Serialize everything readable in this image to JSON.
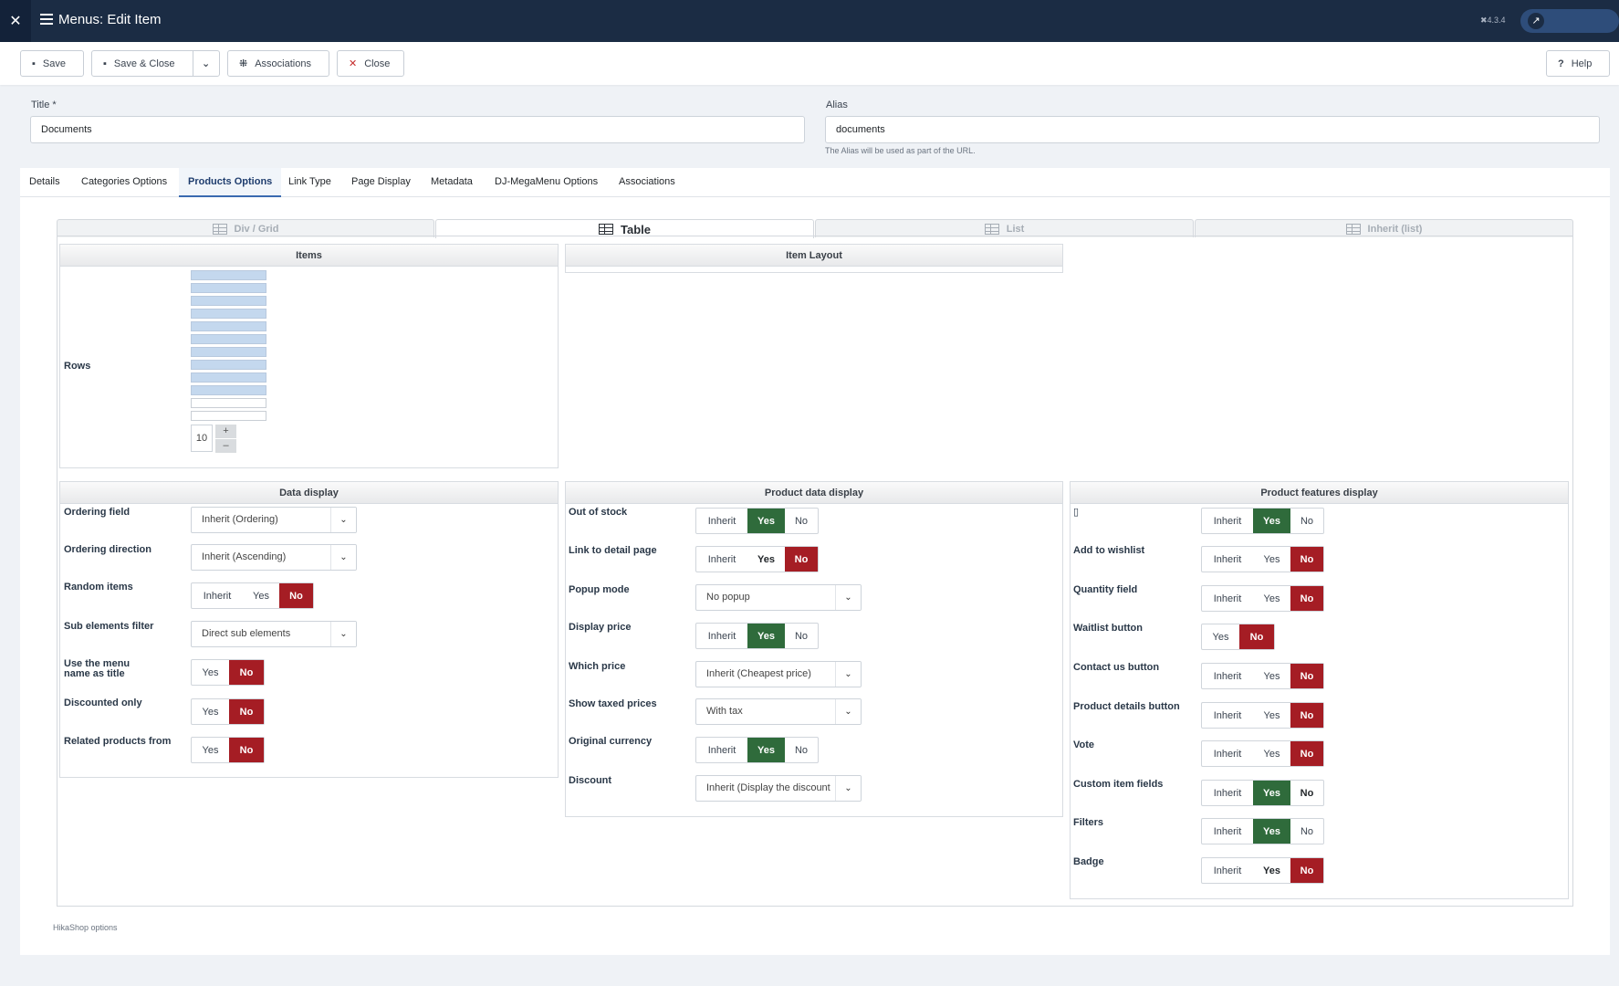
{
  "header": {
    "logo": "✕",
    "title": "Menus: Edit Item",
    "version": "✖4.3.4"
  },
  "toolbar": {
    "save": "Save",
    "save_close": "Save & Close",
    "associations": "Associations",
    "close": "Close",
    "help": "Help"
  },
  "form": {
    "title_label": "Title *",
    "title_value": "Documents",
    "alias_label": "Alias",
    "alias_value": "documents",
    "alias_note": "The Alias will be used as part of the URL."
  },
  "tabs": [
    "Details",
    "Categories Options",
    "Products Options",
    "Link Type",
    "Page Display",
    "Metadata",
    "DJ-MegaMenu Options",
    "Associations"
  ],
  "active_tab": "Products Options",
  "layout_tabs": [
    "Div / Grid",
    "Table",
    "List",
    "Inherit (list)"
  ],
  "active_layout": "Table",
  "items": {
    "title": "Items",
    "rows_label": "Rows",
    "rows_value": "10",
    "plus": "+",
    "minus": "–"
  },
  "item_layout": {
    "title": "Item Layout"
  },
  "data_display": {
    "title": "Data display",
    "ordering_field": {
      "label": "Ordering field",
      "value": "Inherit (Ordering)"
    },
    "ordering_direction": {
      "label": "Ordering direction",
      "value": "Inherit (Ascending)"
    },
    "random_items": {
      "label": "Random items",
      "options": [
        "Inherit",
        "Yes",
        "No"
      ],
      "selected": "No"
    },
    "sub_elements": {
      "label": "Sub elements filter",
      "value": "Direct sub elements"
    },
    "menu_name_title": {
      "label1": "Use the menu",
      "label2": "name as title",
      "options": [
        "Yes",
        "No"
      ],
      "selected": "No"
    },
    "discounted_only": {
      "label": "Discounted only",
      "options": [
        "Yes",
        "No"
      ],
      "selected": "No"
    },
    "related_products": {
      "label": "Related products from",
      "options": [
        "Yes",
        "No"
      ],
      "selected": "No"
    }
  },
  "product_data": {
    "title": "Product data display",
    "out_of_stock": {
      "label": "Out of stock",
      "options": [
        "Inherit",
        "Yes",
        "No"
      ],
      "selected": "Yes"
    },
    "link_detail": {
      "label": "Link to detail page",
      "options": [
        "Inherit",
        "Yes",
        "No"
      ],
      "selected": "No"
    },
    "popup_mode": {
      "label": "Popup mode",
      "value": "No popup"
    },
    "display_price": {
      "label": "Display price",
      "options": [
        "Inherit",
        "Yes",
        "No"
      ],
      "selected": "Yes"
    },
    "which_price": {
      "label": "Which price",
      "value": "Inherit (Cheapest price)"
    },
    "show_taxed": {
      "label": "Show taxed prices",
      "value": "With tax"
    },
    "original_currency": {
      "label": "Original currency",
      "options": [
        "Inherit",
        "Yes",
        "No"
      ],
      "selected": "Yes"
    },
    "discount": {
      "label": "Discount",
      "value": "Inherit (Display the discount"
    }
  },
  "product_features": {
    "title": "Product features display",
    "first_label": "▯",
    "first": {
      "options": [
        "Inherit",
        "Yes",
        "No"
      ],
      "selected": "Yes"
    },
    "wishlist": {
      "label": "Add to wishlist",
      "options": [
        "Inherit",
        "Yes",
        "No"
      ],
      "selected": "No"
    },
    "quantity": {
      "label": "Quantity field",
      "options": [
        "Inherit",
        "Yes",
        "No"
      ],
      "selected": "No"
    },
    "waitlist": {
      "label": "Waitlist button",
      "options": [
        "Yes",
        "No"
      ],
      "selected": "No"
    },
    "contact": {
      "label": "Contact us button",
      "options": [
        "Inherit",
        "Yes",
        "No"
      ],
      "selected": "No"
    },
    "details": {
      "label": "Product details button",
      "options": [
        "Inherit",
        "Yes",
        "No"
      ],
      "selected": "No"
    },
    "vote": {
      "label": "Vote",
      "options": [
        "Inherit",
        "Yes",
        "No"
      ],
      "selected": "No"
    },
    "custom_fields": {
      "label": "Custom item fields",
      "options": [
        "Inherit",
        "Yes",
        "No"
      ],
      "selected": "Yes"
    },
    "filters": {
      "label": "Filters",
      "options": [
        "Inherit",
        "Yes",
        "No"
      ],
      "selected": "Yes"
    },
    "badge": {
      "label": "Badge",
      "options": [
        "Inherit",
        "Yes",
        "No"
      ],
      "selected": "No"
    }
  },
  "footer_note": "HikaShop options",
  "colors": {
    "header_bg": "#1b2c44",
    "yes_green": "#2f6b3b",
    "no_red": "#a51d24",
    "selected_row": "#c4d8ee"
  }
}
